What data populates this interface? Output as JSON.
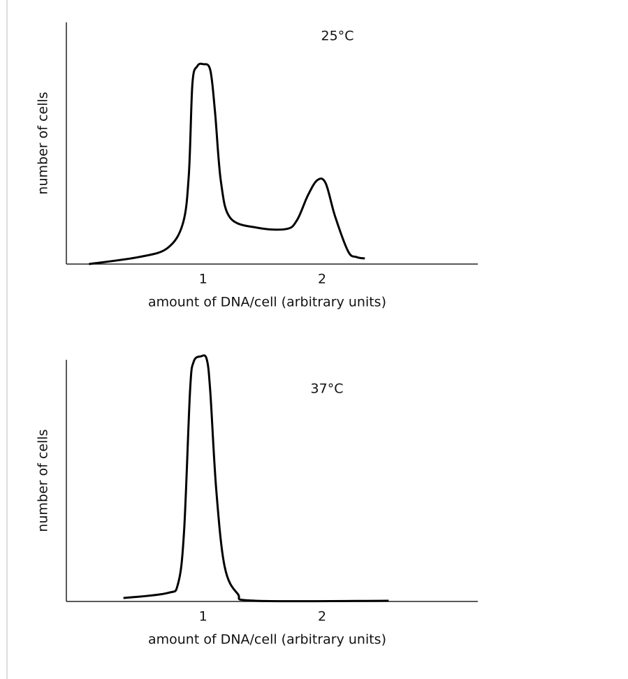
{
  "chart_data": [
    {
      "type": "line",
      "annotation": "25°C",
      "xlabel": "amount of DNA/cell (arbitrary units)",
      "ylabel": "number of cells",
      "xlim": [
        -0.15,
        3.31
      ],
      "ylim": [
        0,
        100
      ],
      "xticks": [
        1,
        2
      ],
      "color": "#000000",
      "x": [
        0.04,
        0.46,
        0.7,
        0.83,
        0.88,
        0.91,
        0.95,
        1.0,
        1.06,
        1.1,
        1.15,
        1.23,
        1.46,
        1.7,
        1.79,
        1.88,
        1.96,
        2.03,
        2.11,
        2.22,
        2.29,
        2.36
      ],
      "values": [
        0,
        2.9,
        6.6,
        16.8,
        37,
        74.6,
        81.8,
        82.7,
        80.3,
        63,
        34,
        19,
        15,
        14.5,
        18.2,
        28.3,
        34.7,
        33.5,
        19.7,
        5.2,
        2.9,
        2.3
      ]
    },
    {
      "type": "line",
      "annotation": "37°C",
      "xlabel": "amount of DNA/cell (arbitrary units)",
      "ylabel": "number of cells",
      "xlim": [
        -0.15,
        3.31
      ],
      "ylim": [
        0,
        100
      ],
      "xticks": [
        1,
        2
      ],
      "color": "#000000",
      "x": [
        0.33,
        0.7,
        0.79,
        0.84,
        0.89,
        0.92,
        0.98,
        1.03,
        1.06,
        1.11,
        1.18,
        1.29,
        1.44,
        2.56
      ],
      "values": [
        1.4,
        3.5,
        7.5,
        29.2,
        87,
        99.1,
        101.4,
        100.3,
        87,
        46.5,
        14.7,
        3.2,
        0.3,
        0.3
      ]
    }
  ]
}
